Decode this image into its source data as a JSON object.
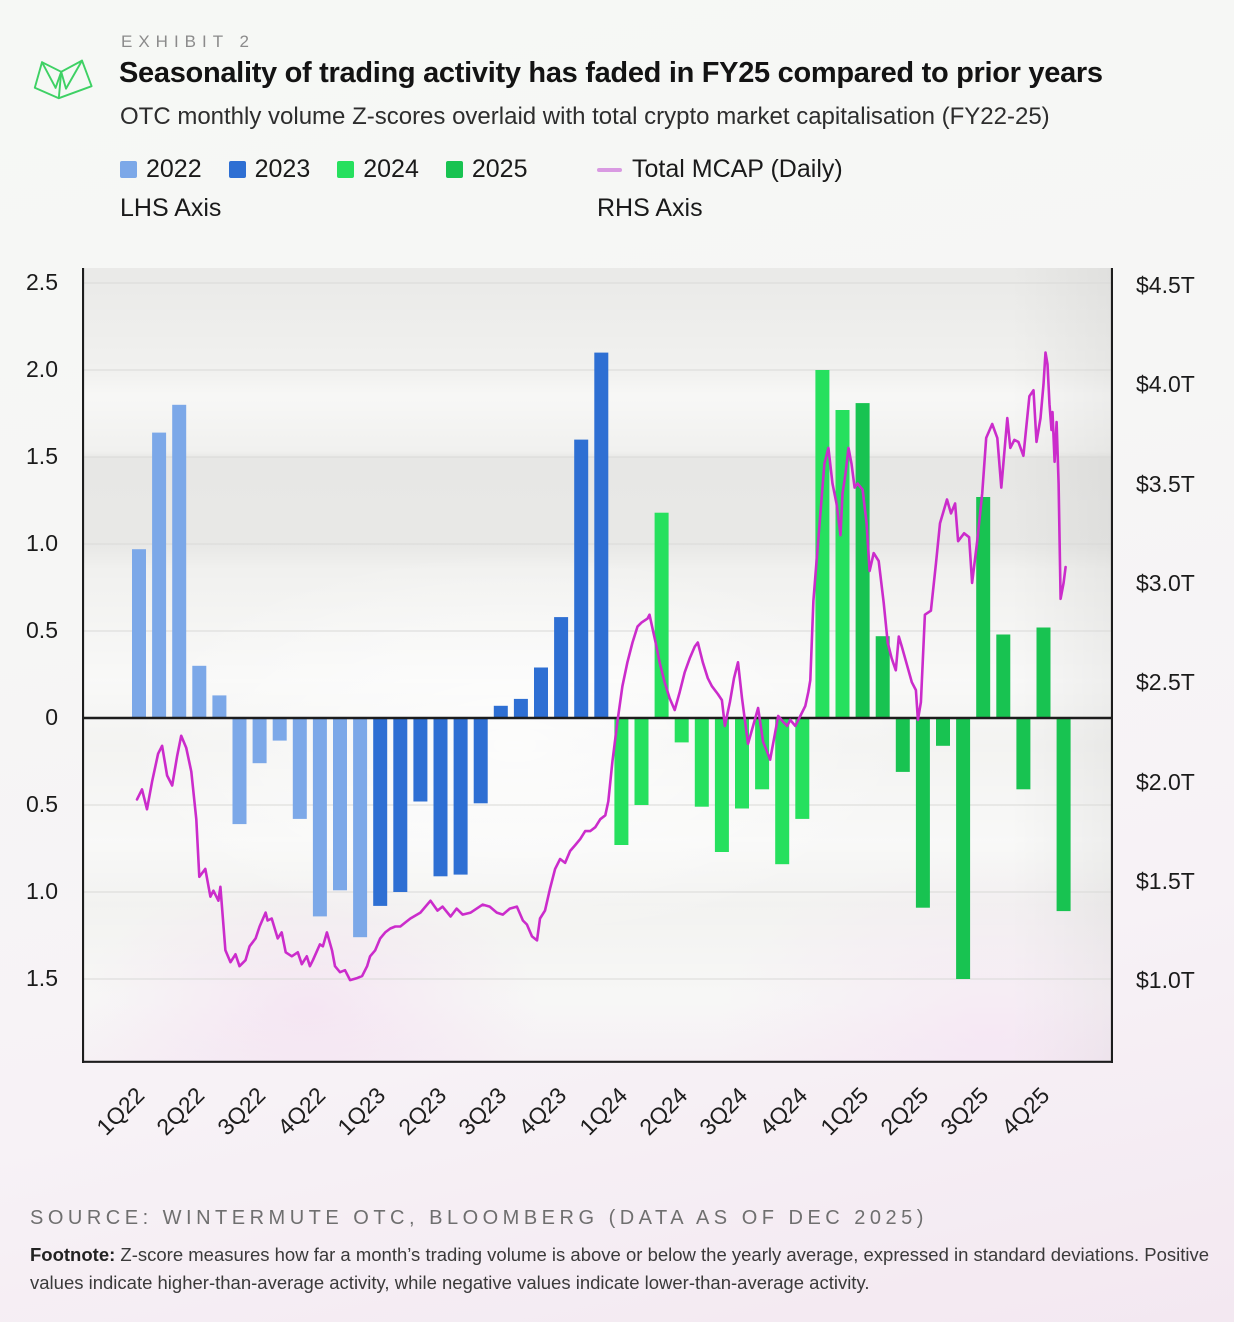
{
  "header": {
    "exhibit": "EXHIBIT 2",
    "title": "Seasonality of trading activity has faded in FY25 compared to prior years",
    "subtitle": "OTC monthly volume Z-scores overlaid with total crypto market capitalisation (FY22-25)"
  },
  "legend": {
    "lhs_axis_label": "LHS Axis",
    "rhs_axis_label": "RHS Axis",
    "mcap_label": "Total MCAP (Daily)",
    "mcap_swatch_color": "#d99ae2"
  },
  "footer": {
    "source": "SOURCE: WINTERMUTE OTC, BLOOMBERG  (DATA AS OF DEC 2025)",
    "footnote_label": "Footnote:",
    "footnote_text": " Z-score measures how far a month’s trading volume is above or below the yearly average, expressed in standard deviations. Positive values indicate higher-than-average activity, while negative values indicate lower-than-average activity."
  },
  "brand_color": "#3ed164",
  "chart_data": {
    "type": "bar+line",
    "title": "OTC monthly volume Z-scores (bars, LHS) vs total crypto market cap (line, RHS)",
    "lhs_axis": {
      "ticks": [
        "2.5",
        "2.0",
        "1.5",
        "1.0",
        "0.5",
        "0",
        "0.5",
        "1.0",
        "1.5"
      ],
      "values": [
        2.5,
        2.0,
        1.5,
        1.0,
        0.5,
        0,
        -0.5,
        -1.0,
        -1.5
      ],
      "range_top": 2.59,
      "range_bottom": -1.98,
      "grid": true
    },
    "rhs_axis": {
      "ticks": [
        "$4.5T",
        "$4.0T",
        "$3.5T",
        "$3.0T",
        "$2.5T",
        "$2.0T",
        "$1.5T",
        "$1.0T"
      ],
      "values": [
        4.5,
        4.0,
        3.5,
        3.0,
        2.5,
        2.0,
        1.5,
        1.0
      ],
      "unit": "USD trillions"
    },
    "x_labels": [
      "1Q22",
      "2Q22",
      "3Q22",
      "4Q22",
      "1Q23",
      "2Q23",
      "3Q23",
      "4Q23",
      "1Q24",
      "2Q24",
      "3Q24",
      "4Q24",
      "1Q25",
      "2Q25",
      "3Q25",
      "4Q25"
    ],
    "bar_series": [
      {
        "name": "2022",
        "color": "#7CA8E8",
        "values": [
          0.97,
          1.64,
          1.8,
          0.3,
          0.13,
          -0.61,
          -0.26,
          -0.13,
          -0.58,
          -1.14,
          -0.99,
          -1.26
        ]
      },
      {
        "name": "2023",
        "color": "#2E6FD3",
        "values": [
          -1.08,
          -1.0,
          -0.48,
          -0.91,
          -0.9,
          -0.49,
          0.07,
          0.11,
          0.29,
          0.58,
          1.6,
          2.1
        ]
      },
      {
        "name": "2024",
        "color": "#26E05E",
        "values": [
          -0.73,
          -0.5,
          1.18,
          -0.14,
          -0.51,
          -0.77,
          -0.52,
          -0.41,
          -0.84,
          -0.58,
          2.0,
          1.77
        ]
      },
      {
        "name": "2025",
        "color": "#18C351",
        "values": [
          1.81,
          0.47,
          -0.31,
          -1.09,
          -0.16,
          -1.5,
          1.27,
          0.48,
          -0.41,
          0.52,
          -1.11,
          null
        ]
      }
    ],
    "mcap_series": {
      "name": "Total MCAP (Daily)",
      "color": "#CB2CCB",
      "unit": "USD trillions",
      "x_unit": "months since mid-Jan 2022",
      "points": [
        [
          -0.1,
          1.91
        ],
        [
          0.15,
          1.96
        ],
        [
          0.4,
          1.86
        ],
        [
          0.65,
          2.0
        ],
        [
          0.95,
          2.14
        ],
        [
          1.15,
          2.18
        ],
        [
          1.4,
          2.03
        ],
        [
          1.65,
          1.98
        ],
        [
          1.9,
          2.13
        ],
        [
          2.1,
          2.23
        ],
        [
          2.35,
          2.17
        ],
        [
          2.6,
          2.05
        ],
        [
          2.85,
          1.81
        ],
        [
          3.0,
          1.52
        ],
        [
          3.3,
          1.56
        ],
        [
          3.55,
          1.42
        ],
        [
          3.7,
          1.45
        ],
        [
          3.95,
          1.4
        ],
        [
          4.05,
          1.47
        ],
        [
          4.3,
          1.15
        ],
        [
          4.55,
          1.09
        ],
        [
          4.8,
          1.13
        ],
        [
          5.0,
          1.07
        ],
        [
          5.3,
          1.1
        ],
        [
          5.5,
          1.17
        ],
        [
          5.8,
          1.21
        ],
        [
          6.0,
          1.27
        ],
        [
          6.3,
          1.34
        ],
        [
          6.4,
          1.3
        ],
        [
          6.6,
          1.31
        ],
        [
          6.9,
          1.21
        ],
        [
          7.1,
          1.24
        ],
        [
          7.3,
          1.14
        ],
        [
          7.6,
          1.12
        ],
        [
          7.9,
          1.14
        ],
        [
          8.1,
          1.08
        ],
        [
          8.35,
          1.12
        ],
        [
          8.5,
          1.07
        ],
        [
          8.65,
          1.1
        ],
        [
          9.0,
          1.18
        ],
        [
          9.15,
          1.17
        ],
        [
          9.35,
          1.24
        ],
        [
          9.6,
          1.15
        ],
        [
          9.75,
          1.07
        ],
        [
          10.0,
          1.04
        ],
        [
          10.25,
          1.05
        ],
        [
          10.5,
          1.0
        ],
        [
          10.85,
          1.01
        ],
        [
          11.1,
          1.02
        ],
        [
          11.35,
          1.07
        ],
        [
          11.5,
          1.12
        ],
        [
          11.75,
          1.15
        ],
        [
          12.0,
          1.21
        ],
        [
          12.25,
          1.24
        ],
        [
          12.5,
          1.26
        ],
        [
          12.75,
          1.27
        ],
        [
          13.0,
          1.27
        ],
        [
          13.25,
          1.29
        ],
        [
          13.5,
          1.31
        ],
        [
          14.0,
          1.34
        ],
        [
          14.5,
          1.4
        ],
        [
          14.85,
          1.35
        ],
        [
          15.1,
          1.37
        ],
        [
          15.5,
          1.32
        ],
        [
          15.8,
          1.36
        ],
        [
          16.1,
          1.33
        ],
        [
          16.5,
          1.34
        ],
        [
          16.8,
          1.36
        ],
        [
          17.1,
          1.38
        ],
        [
          17.45,
          1.37
        ],
        [
          17.8,
          1.34
        ],
        [
          18.1,
          1.33
        ],
        [
          18.45,
          1.36
        ],
        [
          18.8,
          1.37
        ],
        [
          19.1,
          1.3
        ],
        [
          19.3,
          1.28
        ],
        [
          19.55,
          1.22
        ],
        [
          19.8,
          1.2
        ],
        [
          19.95,
          1.31
        ],
        [
          20.2,
          1.35
        ],
        [
          20.45,
          1.46
        ],
        [
          20.7,
          1.56
        ],
        [
          20.95,
          1.61
        ],
        [
          21.2,
          1.59
        ],
        [
          21.45,
          1.65
        ],
        [
          21.7,
          1.68
        ],
        [
          21.95,
          1.71
        ],
        [
          22.2,
          1.75
        ],
        [
          22.45,
          1.75
        ],
        [
          22.7,
          1.77
        ],
        [
          22.95,
          1.81
        ],
        [
          23.2,
          1.83
        ],
        [
          23.35,
          1.9
        ],
        [
          23.55,
          2.1
        ],
        [
          23.8,
          2.3
        ],
        [
          24.05,
          2.48
        ],
        [
          24.3,
          2.6
        ],
        [
          24.55,
          2.7
        ],
        [
          24.8,
          2.78
        ],
        [
          25.0,
          2.8
        ],
        [
          25.3,
          2.82
        ],
        [
          25.4,
          2.84
        ],
        [
          25.7,
          2.7
        ],
        [
          25.9,
          2.6
        ],
        [
          26.15,
          2.5
        ],
        [
          26.4,
          2.42
        ],
        [
          26.65,
          2.36
        ],
        [
          26.9,
          2.45
        ],
        [
          27.15,
          2.55
        ],
        [
          27.4,
          2.62
        ],
        [
          27.65,
          2.68
        ],
        [
          27.8,
          2.7
        ],
        [
          28.05,
          2.6
        ],
        [
          28.3,
          2.52
        ],
        [
          28.5,
          2.48
        ],
        [
          28.8,
          2.44
        ],
        [
          29.0,
          2.41
        ],
        [
          29.15,
          2.28
        ],
        [
          29.4,
          2.4
        ],
        [
          29.6,
          2.52
        ],
        [
          29.8,
          2.6
        ],
        [
          30.0,
          2.42
        ],
        [
          30.3,
          2.19
        ],
        [
          30.55,
          2.28
        ],
        [
          30.8,
          2.37
        ],
        [
          31.05,
          2.2
        ],
        [
          31.25,
          2.15
        ],
        [
          31.4,
          2.11
        ],
        [
          31.6,
          2.22
        ],
        [
          31.8,
          2.33
        ],
        [
          32.05,
          2.3
        ],
        [
          32.25,
          2.28
        ],
        [
          32.4,
          2.31
        ],
        [
          32.65,
          2.28
        ],
        [
          32.9,
          2.33
        ],
        [
          33.15,
          2.38
        ],
        [
          33.3,
          2.45
        ],
        [
          33.4,
          2.51
        ],
        [
          33.55,
          2.91
        ],
        [
          33.7,
          3.1
        ],
        [
          33.9,
          3.35
        ],
        [
          34.1,
          3.6
        ],
        [
          34.3,
          3.68
        ],
        [
          34.5,
          3.5
        ],
        [
          34.7,
          3.4
        ],
        [
          34.9,
          3.24
        ],
        [
          35.0,
          3.45
        ],
        [
          35.15,
          3.55
        ],
        [
          35.3,
          3.68
        ],
        [
          35.45,
          3.6
        ],
        [
          35.6,
          3.48
        ],
        [
          35.75,
          3.5
        ],
        [
          36.0,
          3.47
        ],
        [
          36.2,
          3.3
        ],
        [
          36.35,
          3.06
        ],
        [
          36.55,
          3.15
        ],
        [
          36.8,
          3.11
        ],
        [
          37.05,
          2.9
        ],
        [
          37.25,
          2.7
        ],
        [
          37.45,
          2.62
        ],
        [
          37.65,
          2.56
        ],
        [
          37.8,
          2.73
        ],
        [
          37.95,
          2.68
        ],
        [
          38.2,
          2.59
        ],
        [
          38.45,
          2.5
        ],
        [
          38.65,
          2.46
        ],
        [
          38.75,
          2.31
        ],
        [
          38.9,
          2.4
        ],
        [
          39.1,
          2.84
        ],
        [
          39.4,
          2.86
        ],
        [
          39.65,
          3.1
        ],
        [
          39.85,
          3.3
        ],
        [
          40.2,
          3.42
        ],
        [
          40.4,
          3.35
        ],
        [
          40.6,
          3.4
        ],
        [
          40.75,
          3.21
        ],
        [
          41.05,
          3.25
        ],
        [
          41.3,
          3.23
        ],
        [
          41.45,
          3.0
        ],
        [
          41.7,
          3.21
        ],
        [
          41.95,
          3.45
        ],
        [
          42.15,
          3.73
        ],
        [
          42.45,
          3.8
        ],
        [
          42.7,
          3.73
        ],
        [
          42.9,
          3.48
        ],
        [
          43.2,
          3.83
        ],
        [
          43.35,
          3.68
        ],
        [
          43.55,
          3.72
        ],
        [
          43.75,
          3.71
        ],
        [
          44.0,
          3.64
        ],
        [
          44.3,
          3.94
        ],
        [
          44.5,
          3.97
        ],
        [
          44.65,
          3.71
        ],
        [
          44.85,
          3.83
        ],
        [
          45.0,
          4.0
        ],
        [
          45.1,
          4.16
        ],
        [
          45.2,
          4.1
        ],
        [
          45.3,
          3.9
        ],
        [
          45.4,
          3.77
        ],
        [
          45.45,
          3.86
        ],
        [
          45.55,
          3.61
        ],
        [
          45.65,
          3.81
        ],
        [
          45.75,
          3.5
        ],
        [
          45.85,
          2.92
        ],
        [
          46.0,
          3.0
        ],
        [
          46.1,
          3.08
        ]
      ]
    },
    "legend_position": "top-left",
    "months_per_year": 12
  }
}
